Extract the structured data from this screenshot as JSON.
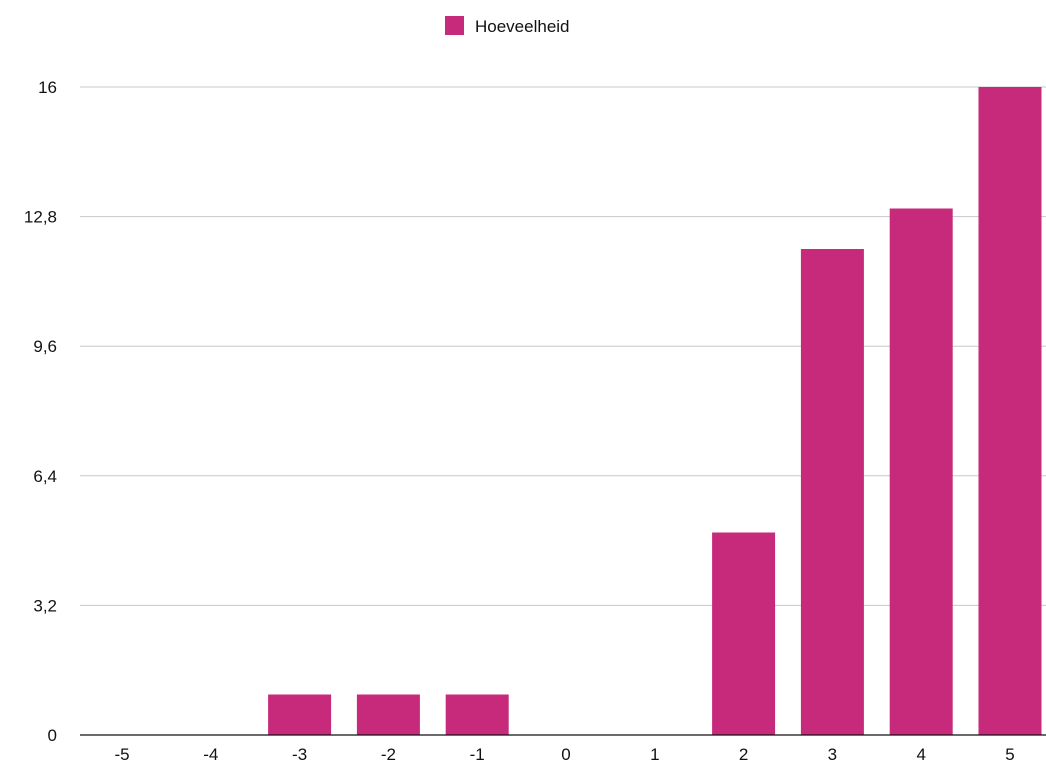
{
  "chart_data": {
    "type": "bar",
    "title": "",
    "xlabel": "",
    "ylabel": "",
    "categories": [
      "-5",
      "-4",
      "-3",
      "-2",
      "-1",
      "0",
      "1",
      "2",
      "3",
      "4",
      "5"
    ],
    "series": [
      {
        "name": "Hoeveelheid",
        "color": "#c72a7a",
        "values": [
          0,
          0,
          1,
          1,
          1,
          0,
          0,
          5,
          12,
          13,
          16
        ]
      }
    ],
    "ylim": [
      0,
      16
    ],
    "yticks": [
      "0",
      "3,2",
      "6,4",
      "9,6",
      "12,8",
      "16"
    ],
    "ytick_values": [
      0,
      3.2,
      6.4,
      9.6,
      12.8,
      16
    ],
    "grid": true,
    "legend_position": "top-center"
  }
}
